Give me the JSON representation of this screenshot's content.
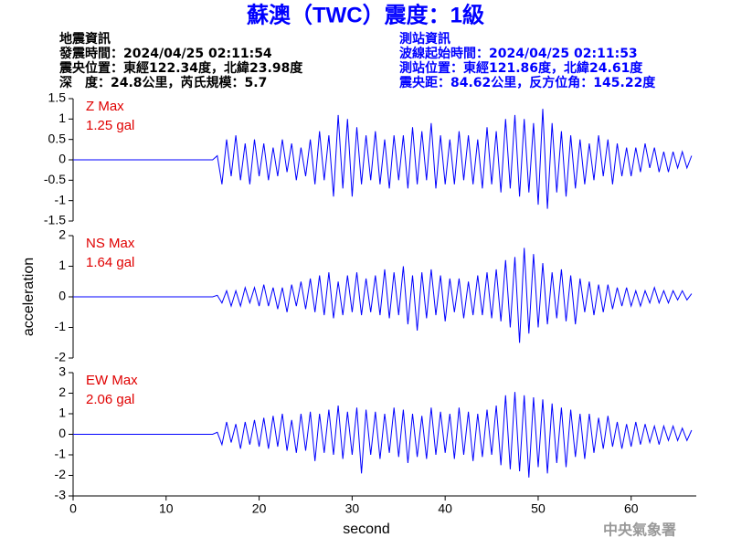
{
  "header": {
    "title": "蘇澳（TWC）震度：1級",
    "left": [
      "地震資訊",
      "發震時間：2024/04/25 02:11:54",
      "震央位置：東經122.34度，北緯23.98度",
      "深　度：24.8公里，芮氏規模：5.7"
    ],
    "right": [
      "測站資訊",
      "波線起始時間：2024/04/25 02:11:53",
      "測站位置：東經121.86度，北緯24.61度",
      "震央距：84.62公里，反方位角：145.22度"
    ]
  },
  "footer": "中央氣象署",
  "chart_data": [
    {
      "type": "line",
      "annotations": [
        "Z Max",
        "1.25 gal"
      ],
      "xlim": [
        0,
        67
      ],
      "ylim": [
        -1.5,
        1.5
      ],
      "yticks": [
        -1.5,
        -1,
        -0.5,
        0,
        0.5,
        1,
        1.5
      ],
      "x": [
        0,
        5,
        10,
        15,
        15.5,
        16,
        16.5,
        17,
        17.5,
        18,
        18.5,
        19,
        19.5,
        20,
        20.5,
        21,
        21.5,
        22,
        22.5,
        23,
        23.5,
        24,
        24.5,
        25,
        25.5,
        26,
        26.5,
        27,
        27.5,
        28,
        28.5,
        29,
        29.5,
        30,
        30.5,
        31,
        31.5,
        32,
        32.5,
        33,
        33.5,
        34,
        34.5,
        35,
        35.5,
        36,
        36.5,
        37,
        37.5,
        38,
        38.5,
        39,
        39.5,
        40,
        40.5,
        41,
        41.5,
        42,
        42.5,
        43,
        43.5,
        44,
        44.5,
        45,
        45.5,
        46,
        46.5,
        47,
        47.5,
        48,
        48.5,
        49,
        49.5,
        50,
        50.5,
        51,
        51.5,
        52,
        52.5,
        53,
        53.5,
        54,
        54.5,
        55,
        55.5,
        56,
        56.5,
        57,
        57.5,
        58,
        58.5,
        59,
        59.5,
        60,
        60.5,
        61,
        61.5,
        62,
        62.5,
        63,
        63.5,
        64,
        64.5,
        65,
        65.5,
        66,
        66.5
      ],
      "series": [
        {
          "color": "#0000ff",
          "values": [
            0,
            0,
            0,
            0,
            0.1,
            -0.6,
            0.5,
            -0.4,
            0.6,
            -0.5,
            0.4,
            -0.6,
            0.5,
            -0.4,
            0.4,
            -0.5,
            0.3,
            -0.4,
            0.5,
            -0.3,
            0.4,
            -0.5,
            0.3,
            -0.4,
            0.5,
            -0.6,
            0.7,
            -0.5,
            0.6,
            -0.9,
            1.1,
            -0.7,
            1.0,
            -0.9,
            0.8,
            -0.6,
            0.6,
            -0.5,
            0.7,
            -0.6,
            0.5,
            -0.7,
            0.6,
            -0.5,
            0.6,
            -0.7,
            0.8,
            -0.6,
            0.7,
            -0.5,
            0.9,
            -0.7,
            0.6,
            -0.6,
            0.5,
            -0.6,
            0.7,
            -0.5,
            0.6,
            -0.6,
            0.5,
            -0.7,
            0.8,
            -0.6,
            0.7,
            -0.8,
            1.0,
            -0.7,
            1.1,
            -0.9,
            1.0,
            -0.8,
            0.9,
            -1.1,
            1.25,
            -1.2,
            0.9,
            -0.8,
            0.7,
            -0.9,
            0.6,
            -0.7,
            0.5,
            -0.6,
            0.4,
            -0.5,
            0.6,
            -0.4,
            0.5,
            -0.6,
            0.4,
            -0.4,
            0.3,
            -0.4,
            0.3,
            -0.3,
            0.4,
            -0.2,
            0.3,
            -0.3,
            0.2,
            -0.3,
            0.2,
            -0.2,
            0.2,
            -0.2,
            0.1
          ]
        }
      ]
    },
    {
      "type": "line",
      "annotations": [
        "NS Max",
        "1.64 gal"
      ],
      "ylabel": "acceleration",
      "xlim": [
        0,
        67
      ],
      "ylim": [
        -2,
        2
      ],
      "yticks": [
        -2,
        -1,
        0,
        1,
        2
      ],
      "x": [
        0,
        5,
        10,
        15,
        15.5,
        16,
        16.5,
        17,
        17.5,
        18,
        18.5,
        19,
        19.5,
        20,
        20.5,
        21,
        21.5,
        22,
        22.5,
        23,
        23.5,
        24,
        24.5,
        25,
        25.5,
        26,
        26.5,
        27,
        27.5,
        28,
        28.5,
        29,
        29.5,
        30,
        30.5,
        31,
        31.5,
        32,
        32.5,
        33,
        33.5,
        34,
        34.5,
        35,
        35.5,
        36,
        36.5,
        37,
        37.5,
        38,
        38.5,
        39,
        39.5,
        40,
        40.5,
        41,
        41.5,
        42,
        42.5,
        43,
        43.5,
        44,
        44.5,
        45,
        45.5,
        46,
        46.5,
        47,
        47.5,
        48,
        48.5,
        49,
        49.5,
        50,
        50.5,
        51,
        51.5,
        52,
        52.5,
        53,
        53.5,
        54,
        54.5,
        55,
        55.5,
        56,
        56.5,
        57,
        57.5,
        58,
        58.5,
        59,
        59.5,
        60,
        60.5,
        61,
        61.5,
        62,
        62.5,
        63,
        63.5,
        64,
        64.5,
        65,
        65.5,
        66,
        66.5
      ],
      "series": [
        {
          "color": "#0000ff",
          "values": [
            0,
            0,
            0,
            0,
            0.05,
            -0.2,
            0.2,
            -0.3,
            0.2,
            -0.3,
            0.3,
            -0.2,
            0.3,
            -0.3,
            0.4,
            -0.3,
            0.3,
            -0.4,
            0.3,
            -0.5,
            0.4,
            -0.3,
            0.5,
            -0.4,
            0.6,
            -0.5,
            0.7,
            -0.6,
            0.8,
            -0.7,
            0.5,
            -0.6,
            0.7,
            -0.5,
            0.8,
            -0.6,
            0.6,
            -0.5,
            0.7,
            -0.6,
            0.9,
            -0.7,
            0.8,
            -0.6,
            1.0,
            -0.9,
            0.7,
            -1.1,
            0.8,
            -0.7,
            0.9,
            -0.6,
            0.7,
            -0.8,
            0.6,
            -0.5,
            0.6,
            -0.7,
            0.5,
            -0.6,
            0.7,
            -0.6,
            0.8,
            -0.7,
            0.9,
            -0.8,
            1.2,
            -1.0,
            1.3,
            -1.5,
            1.6,
            -1.2,
            1.4,
            -1.0,
            1.1,
            -0.9,
            0.8,
            -0.7,
            0.9,
            -0.8,
            0.7,
            -0.9,
            0.6,
            -0.5,
            0.5,
            -0.6,
            0.4,
            -0.5,
            0.4,
            -0.4,
            0.3,
            -0.3,
            0.3,
            -0.3,
            0.2,
            -0.3,
            0.2,
            -0.2,
            0.3,
            -0.2,
            0.2,
            -0.2,
            0.2,
            -0.1,
            0.2,
            -0.1,
            0.1
          ]
        }
      ]
    },
    {
      "type": "line",
      "annotations": [
        "EW Max",
        "2.06 gal"
      ],
      "xlabel": "second",
      "xlim": [
        0,
        67
      ],
      "xticks": [
        0,
        10,
        20,
        30,
        40,
        50,
        60
      ],
      "ylim": [
        -3,
        3
      ],
      "yticks": [
        -3,
        -2,
        -1,
        0,
        1,
        2,
        3
      ],
      "x": [
        0,
        5,
        10,
        15,
        15.5,
        16,
        16.5,
        17,
        17.5,
        18,
        18.5,
        19,
        19.5,
        20,
        20.5,
        21,
        21.5,
        22,
        22.5,
        23,
        23.5,
        24,
        24.5,
        25,
        25.5,
        26,
        26.5,
        27,
        27.5,
        28,
        28.5,
        29,
        29.5,
        30,
        30.5,
        31,
        31.5,
        32,
        32.5,
        33,
        33.5,
        34,
        34.5,
        35,
        35.5,
        36,
        36.5,
        37,
        37.5,
        38,
        38.5,
        39,
        39.5,
        40,
        40.5,
        41,
        41.5,
        42,
        42.5,
        43,
        43.5,
        44,
        44.5,
        45,
        45.5,
        46,
        46.5,
        47,
        47.5,
        48,
        48.5,
        49,
        49.5,
        50,
        50.5,
        51,
        51.5,
        52,
        52.5,
        53,
        53.5,
        54,
        54.5,
        55,
        55.5,
        56,
        56.5,
        57,
        57.5,
        58,
        58.5,
        59,
        59.5,
        60,
        60.5,
        61,
        61.5,
        62,
        62.5,
        63,
        63.5,
        64,
        64.5,
        65,
        65.5,
        66,
        66.5
      ],
      "series": [
        {
          "color": "#0000ff",
          "values": [
            0,
            0,
            0,
            0,
            0.1,
            -0.5,
            0.6,
            -0.4,
            0.5,
            -0.7,
            0.6,
            -0.5,
            0.7,
            -0.6,
            0.8,
            -0.7,
            0.9,
            -0.6,
            1.0,
            -0.8,
            0.7,
            -0.9,
            1.0,
            -0.8,
            1.1,
            -1.3,
            1.0,
            -0.9,
            1.2,
            -1.0,
            1.4,
            -1.2,
            1.1,
            -1.0,
            1.3,
            -1.9,
            1.2,
            -1.0,
            1.1,
            -1.2,
            1.0,
            -0.9,
            1.3,
            -1.1,
            1.2,
            -1.4,
            1.0,
            -1.1,
            0.9,
            -1.2,
            1.3,
            -1.0,
            1.1,
            -0.9,
            1.0,
            -1.2,
            1.3,
            -1.0,
            1.1,
            -1.3,
            1.0,
            -1.1,
            1.2,
            -1.0,
            1.4,
            -1.5,
            1.9,
            -1.7,
            2.06,
            -1.8,
            1.9,
            -2.1,
            1.8,
            -1.6,
            1.7,
            -1.9,
            1.5,
            -1.4,
            1.3,
            -1.6,
            1.2,
            -1.1,
            1.0,
            -1.2,
            1.0,
            -0.9,
            0.8,
            -0.7,
            0.9,
            -0.6,
            0.6,
            -0.7,
            0.5,
            -0.6,
            0.6,
            -0.5,
            0.5,
            -0.4,
            0.4,
            -0.5,
            0.4,
            -0.3,
            0.4,
            -0.3,
            0.3,
            -0.3,
            0.2
          ]
        }
      ]
    }
  ]
}
